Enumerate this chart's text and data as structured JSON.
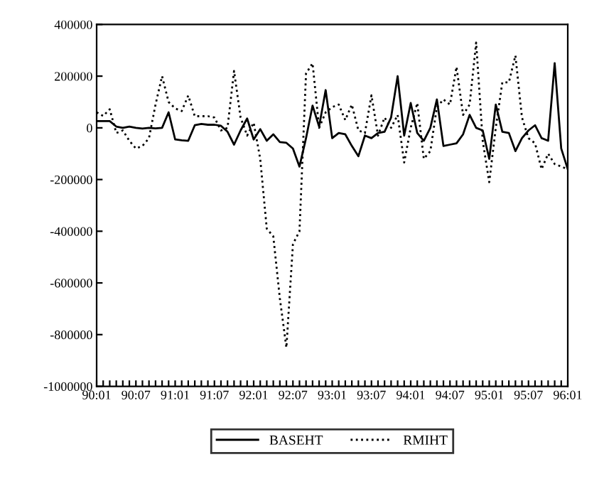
{
  "chart_data": {
    "type": "line",
    "legend": "bottom",
    "grid": false,
    "categories": [
      "90:01",
      null,
      null,
      null,
      null,
      null,
      "90:07",
      null,
      null,
      null,
      null,
      null,
      "91:01",
      null,
      null,
      null,
      null,
      null,
      "91:07",
      null,
      null,
      null,
      null,
      null,
      "92:01",
      null,
      null,
      null,
      null,
      null,
      "92:07",
      null,
      null,
      null,
      null,
      null,
      "93:01",
      null,
      null,
      null,
      null,
      null,
      "93:07",
      null,
      null,
      null,
      null,
      null,
      "94:01",
      null,
      null,
      null,
      null,
      null,
      "94:07",
      null,
      null,
      null,
      null,
      null,
      "95:01",
      null,
      null,
      null,
      null,
      null,
      "95:07",
      null,
      null,
      null,
      null,
      null,
      "96:01"
    ],
    "ylim": [
      -1000000,
      400000
    ],
    "yticks": [
      -1000000,
      -800000,
      -600000,
      -400000,
      -200000,
      0,
      200000,
      400000
    ],
    "series": [
      {
        "name": "BASEHT",
        "color": "#000000",
        "line_style": "solid",
        "values": [
          26000,
          26000,
          26000,
          5000,
          0,
          5000,
          0,
          -3000,
          0,
          -2000,
          0,
          60000,
          -45000,
          -48000,
          -50000,
          10000,
          15000,
          12000,
          12000,
          8000,
          -15000,
          -65000,
          -10000,
          36000,
          -45000,
          -5000,
          -50000,
          -25000,
          -55000,
          -58000,
          -80000,
          -150000,
          -40000,
          86000,
          5000,
          146000,
          -40000,
          -20000,
          -25000,
          -70000,
          -110000,
          -30000,
          -40000,
          -20000,
          -15000,
          40000,
          200000,
          -30000,
          96000,
          -20000,
          -50000,
          0,
          110000,
          -70000,
          -65000,
          -60000,
          -25000,
          50000,
          0,
          -10000,
          -120000,
          90000,
          -15000,
          -20000,
          -90000,
          -40000,
          -10000,
          10000,
          -40000,
          -50000,
          250000,
          -80000,
          -160000
        ]
      },
      {
        "name": "RMIHT",
        "color": "#000000",
        "line_style": "dotted",
        "values": [
          60000,
          46000,
          72000,
          -20000,
          -10000,
          -50000,
          -80000,
          -70000,
          -40000,
          90000,
          200000,
          100000,
          75000,
          65000,
          125000,
          45000,
          45000,
          45000,
          40000,
          -10000,
          0,
          220000,
          40000,
          -30000,
          20000,
          -120000,
          -390000,
          -420000,
          -660000,
          -850000,
          -450000,
          -400000,
          210000,
          250000,
          0,
          60000,
          80000,
          90000,
          30000,
          90000,
          -10000,
          -20000,
          126000,
          -30000,
          40000,
          0,
          50000,
          -134000,
          0,
          96000,
          -120000,
          -90000,
          80000,
          110000,
          90000,
          236000,
          50000,
          90000,
          330000,
          -50000,
          -210000,
          0,
          176000,
          176000,
          280000,
          40000,
          -40000,
          -60000,
          -160000,
          -100000,
          -140000,
          -150000,
          -160000
        ]
      }
    ]
  }
}
